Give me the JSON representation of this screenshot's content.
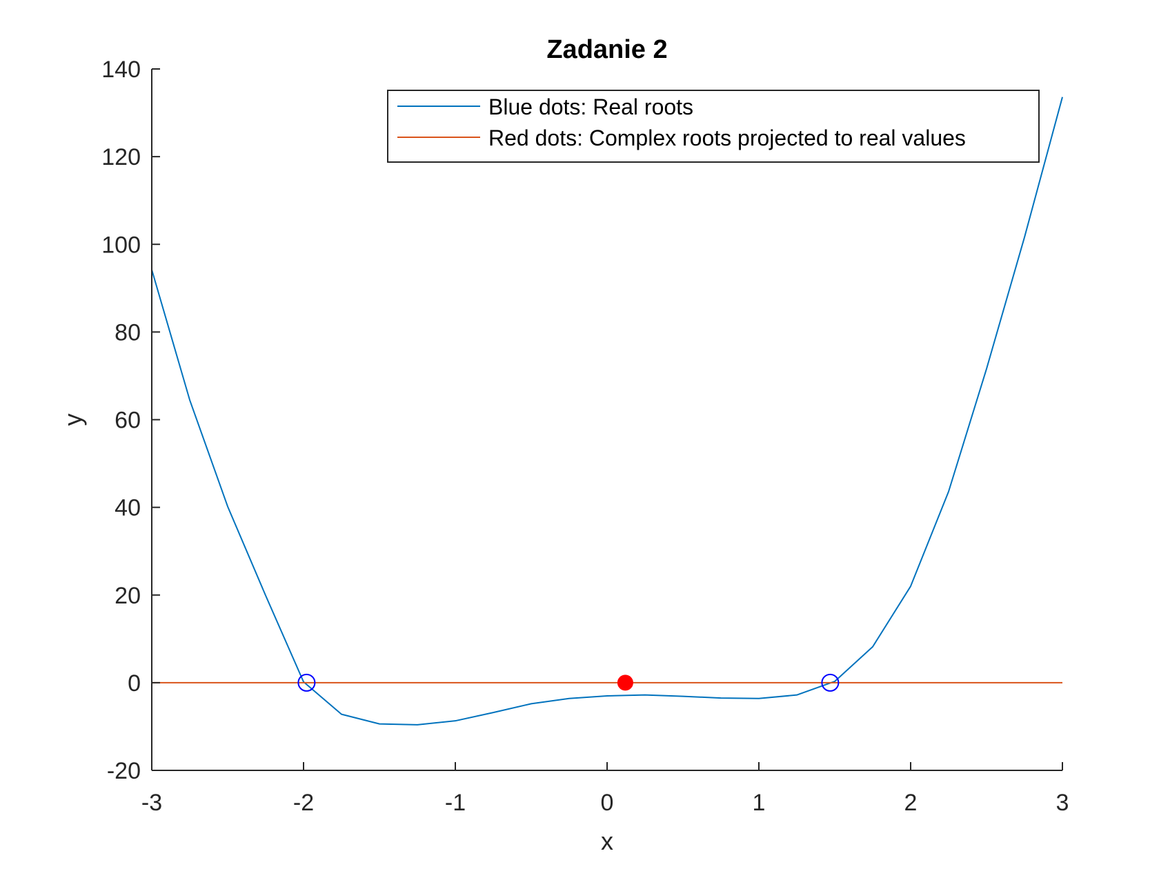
{
  "chart_data": {
    "type": "line",
    "title": "Zadanie 2",
    "xlabel": "x",
    "ylabel": "y",
    "xlim": [
      -3,
      3
    ],
    "ylim": [
      -20,
      140
    ],
    "xticks": [
      -3,
      -2,
      -1,
      0,
      1,
      2,
      3
    ],
    "yticks": [
      -20,
      0,
      20,
      40,
      60,
      80,
      100,
      120,
      140
    ],
    "grid": false,
    "legend_position": "top-right",
    "series": [
      {
        "name": "Blue dots: Real roots",
        "color": "#0072BD",
        "x": [
          -3,
          -2.75,
          -2.5,
          -2.25,
          -2,
          -1.75,
          -1.5,
          -1.25,
          -1,
          -0.75,
          -0.5,
          -0.25,
          0,
          0.25,
          0.5,
          0.75,
          1,
          1.25,
          1.5,
          1.75,
          2,
          2.25,
          2.5,
          2.75,
          3
        ],
        "y": [
          94.2,
          64.5,
          40.2,
          19.9,
          0.2,
          -7.2,
          -9.4,
          -9.6,
          -8.7,
          -6.8,
          -4.8,
          -3.6,
          -3.0,
          -2.8,
          -3.1,
          -3.5,
          -3.6,
          -2.8,
          0.3,
          8.2,
          22.0,
          43.6,
          71.6,
          101.6,
          133.6
        ]
      },
      {
        "name": "Red dots: Complex roots projected to real values",
        "color": "#D95319",
        "x": [
          -3,
          3
        ],
        "y": [
          0,
          0
        ]
      }
    ],
    "real_roots": {
      "color": "#0000FF",
      "x": [
        -1.98,
        1.47
      ],
      "y": [
        0,
        0
      ]
    },
    "complex_root_projection": {
      "color": "#FF0000",
      "x": [
        0.12
      ],
      "y": [
        0
      ]
    }
  }
}
